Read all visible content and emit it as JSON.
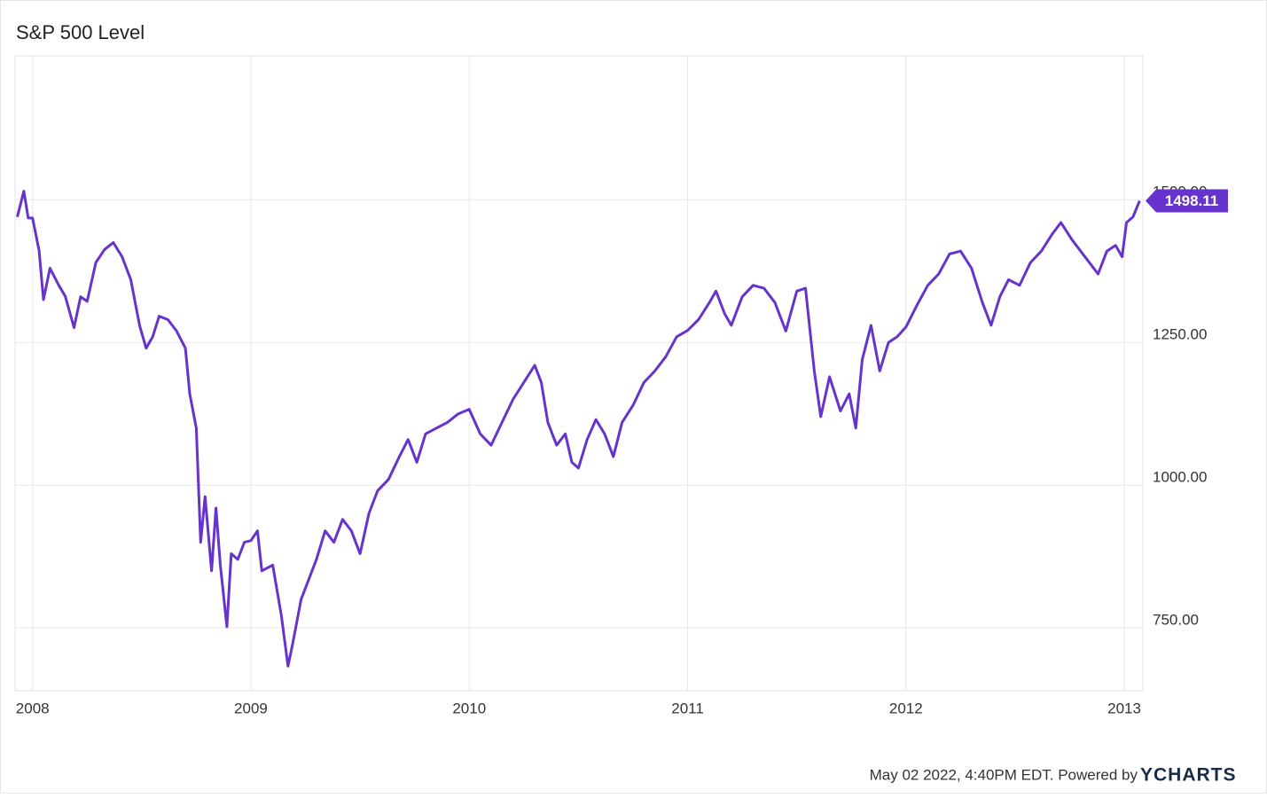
{
  "chart_data": {
    "type": "line",
    "title": "S&P 500 Level",
    "x": [
      2007.93,
      2007.96,
      2007.98,
      2008.0,
      2008.03,
      2008.05,
      2008.08,
      2008.12,
      2008.15,
      2008.19,
      2008.22,
      2008.25,
      2008.29,
      2008.33,
      2008.37,
      2008.41,
      2008.45,
      2008.49,
      2008.52,
      2008.55,
      2008.58,
      2008.62,
      2008.66,
      2008.7,
      2008.72,
      2008.75,
      2008.77,
      2008.79,
      2008.82,
      2008.84,
      2008.86,
      2008.89,
      2008.91,
      2008.94,
      2008.97,
      2009.0,
      2009.03,
      2009.05,
      2009.1,
      2009.14,
      2009.17,
      2009.19,
      2009.23,
      2009.27,
      2009.3,
      2009.34,
      2009.38,
      2009.42,
      2009.46,
      2009.5,
      2009.54,
      2009.58,
      2009.63,
      2009.68,
      2009.72,
      2009.76,
      2009.8,
      2009.85,
      2009.9,
      2009.95,
      2010.0,
      2010.05,
      2010.1,
      2010.15,
      2010.2,
      2010.25,
      2010.3,
      2010.33,
      2010.36,
      2010.4,
      2010.44,
      2010.47,
      2010.5,
      2010.54,
      2010.58,
      2010.62,
      2010.66,
      2010.7,
      2010.75,
      2010.8,
      2010.85,
      2010.9,
      2010.95,
      2011.0,
      2011.05,
      2011.1,
      2011.13,
      2011.17,
      2011.2,
      2011.25,
      2011.3,
      2011.35,
      2011.4,
      2011.45,
      2011.5,
      2011.54,
      2011.58,
      2011.61,
      2011.65,
      2011.7,
      2011.74,
      2011.77,
      2011.8,
      2011.84,
      2011.88,
      2011.92,
      2011.96,
      2012.0,
      2012.05,
      2012.1,
      2012.15,
      2012.2,
      2012.25,
      2012.3,
      2012.35,
      2012.39,
      2012.43,
      2012.47,
      2012.52,
      2012.57,
      2012.62,
      2012.67,
      2012.71,
      2012.76,
      2012.8,
      2012.85,
      2012.88,
      2012.92,
      2012.96,
      2012.99,
      2013.01,
      2013.04,
      2013.07
    ],
    "values": [
      1470,
      1515,
      1468,
      1468,
      1411,
      1325,
      1380,
      1350,
      1331,
      1276,
      1330,
      1322,
      1390,
      1413,
      1425,
      1400,
      1360,
      1280,
      1240,
      1260,
      1296,
      1290,
      1270,
      1240,
      1160,
      1100,
      900,
      980,
      850,
      960,
      860,
      752,
      880,
      870,
      900,
      903,
      920,
      850,
      860,
      770,
      683,
      720,
      800,
      840,
      870,
      920,
      900,
      940,
      920,
      880,
      950,
      990,
      1010,
      1050,
      1080,
      1040,
      1090,
      1100,
      1110,
      1125,
      1133,
      1090,
      1070,
      1110,
      1150,
      1180,
      1210,
      1180,
      1110,
      1070,
      1090,
      1040,
      1030,
      1080,
      1115,
      1090,
      1050,
      1110,
      1140,
      1180,
      1200,
      1225,
      1260,
      1271,
      1290,
      1320,
      1340,
      1300,
      1280,
      1330,
      1350,
      1345,
      1320,
      1270,
      1340,
      1345,
      1200,
      1120,
      1190,
      1130,
      1160,
      1100,
      1220,
      1280,
      1200,
      1250,
      1260,
      1277,
      1315,
      1350,
      1370,
      1405,
      1410,
      1380,
      1320,
      1280,
      1330,
      1360,
      1350,
      1390,
      1410,
      1440,
      1460,
      1430,
      1410,
      1385,
      1370,
      1410,
      1420,
      1400,
      1460,
      1470,
      1498.11
    ],
    "color": "#6633cc",
    "xlim": [
      2007.92,
      2013.085
    ],
    "xticks": [
      2008,
      2009,
      2010,
      2011,
      2012,
      2013
    ],
    "ylim": [
      640,
      1752
    ],
    "yticks": [
      {
        "value": 750,
        "label": "750.00"
      },
      {
        "value": 1000,
        "label": "1000.00"
      },
      {
        "value": 1250,
        "label": "1250.00"
      },
      {
        "value": 1500,
        "label": "1500.00"
      }
    ],
    "grid": true,
    "footer": "May 02 2022, 4:40PM EDT. Powered by",
    "logo": "YCHARTS"
  }
}
